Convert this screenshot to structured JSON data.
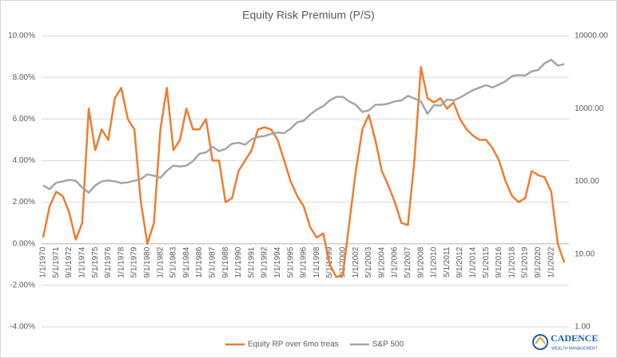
{
  "chart_data": {
    "type": "line",
    "title": "Equity Risk Premium (P/S)",
    "categories": [
      "1/1/1970",
      null,
      "5/1/1971",
      null,
      "9/1/1972",
      null,
      "1/1/1974",
      null,
      "5/1/1975",
      null,
      "9/1/1976",
      null,
      "1/1/1978",
      null,
      "5/1/1979",
      null,
      "9/1/1980",
      null,
      "1/1/1982",
      null,
      "5/1/1983",
      null,
      "9/1/1984",
      null,
      "1/1/1986",
      null,
      "5/1/1987",
      null,
      "9/1/1988",
      null,
      "1/1/1990",
      null,
      "5/1/1991",
      null,
      "9/1/1992",
      null,
      "1/1/1994",
      null,
      "5/1/1995",
      null,
      "9/1/1996",
      null,
      "1/1/1998",
      null,
      "5/1/1999",
      null,
      "9/1/2000",
      null,
      "1/1/2002",
      null,
      "5/1/2003",
      null,
      "9/1/2004",
      null,
      "1/1/2006",
      null,
      "5/1/2007",
      null,
      "9/1/2008",
      null,
      "1/1/2010",
      null,
      "5/1/2011",
      null,
      "9/1/2012",
      null,
      "1/1/2014",
      null,
      "5/1/2015",
      null,
      "9/1/2016",
      null,
      "1/1/2018",
      null,
      "5/1/2019",
      null,
      "9/1/2020",
      null,
      "1/1/2022",
      null,
      null
    ],
    "series": [
      {
        "name": "Equity RP over 6mo treas",
        "color": "#ED7D31",
        "values": [
          0.3,
          1.8,
          2.5,
          2.3,
          1.5,
          0.2,
          1.0,
          6.5,
          4.5,
          5.5,
          5.0,
          7.0,
          7.5,
          6.0,
          5.5,
          2.0,
          0.0,
          1.0,
          5.5,
          7.5,
          4.5,
          5.0,
          6.5,
          5.5,
          5.5,
          6.0,
          4.0,
          4.0,
          2.0,
          2.2,
          3.5,
          4.0,
          4.5,
          5.5,
          5.6,
          5.5,
          5.0,
          4.0,
          3.0,
          2.3,
          1.8,
          0.8,
          0.3,
          0.5,
          -1.0,
          -1.6,
          -1.5,
          1.0,
          3.5,
          5.5,
          6.2,
          5.0,
          3.5,
          2.8,
          2.0,
          1.0,
          0.9,
          4.0,
          8.5,
          7.0,
          6.8,
          7.0,
          6.5,
          6.8,
          6.0,
          5.5,
          5.2,
          5.0,
          5.0,
          4.6,
          4.0,
          3.0,
          2.3,
          2.0,
          2.2,
          3.5,
          3.3,
          3.2,
          2.5,
          0.0,
          -0.9
        ]
      },
      {
        "name": "S&P 500",
        "color": "#A5A5A5",
        "axis": "y2",
        "values": [
          88,
          78,
          96,
          100,
          105,
          102,
          82,
          70,
          88,
          100,
          103,
          100,
          95,
          97,
          102,
          108,
          125,
          120,
          112,
          140,
          165,
          160,
          165,
          190,
          240,
          250,
          300,
          260,
          280,
          330,
          340,
          320,
          380,
          410,
          420,
          450,
          470,
          460,
          530,
          650,
          680,
          830,
          970,
          1080,
          1300,
          1450,
          1450,
          1250,
          1130,
          900,
          950,
          1130,
          1130,
          1170,
          1260,
          1300,
          1500,
          1380,
          1250,
          850,
          1120,
          1100,
          1330,
          1300,
          1420,
          1600,
          1800,
          1950,
          2100,
          1950,
          2150,
          2380,
          2800,
          2900,
          2850,
          3250,
          3400,
          4200,
          4700,
          3900,
          4100
        ]
      }
    ],
    "ylim": [
      -4,
      10
    ],
    "yticks": [
      {
        "value": -4,
        "label": "-4.00%"
      },
      {
        "value": -2,
        "label": "-2.00%"
      },
      {
        "value": 0,
        "label": "0.00%"
      },
      {
        "value": 2,
        "label": "2.00%"
      },
      {
        "value": 4,
        "label": "4.00%"
      },
      {
        "value": 6,
        "label": "6.00%"
      },
      {
        "value": 8,
        "label": "8.00%"
      },
      {
        "value": 10,
        "label": "10.00%"
      }
    ],
    "y2lim": [
      1,
      10000
    ],
    "y2log": true,
    "y2ticks": [
      {
        "value": 1,
        "label": "1.00"
      },
      {
        "value": 10,
        "label": "10.00"
      },
      {
        "value": 100,
        "label": "100.00"
      },
      {
        "value": 1000,
        "label": "1000.00"
      },
      {
        "value": 10000,
        "label": "10000.00"
      }
    ],
    "grid": true,
    "legend": "bottom"
  },
  "brand": {
    "name": "CADENCE",
    "tagline": "WEALTH MANAGEMENT"
  }
}
